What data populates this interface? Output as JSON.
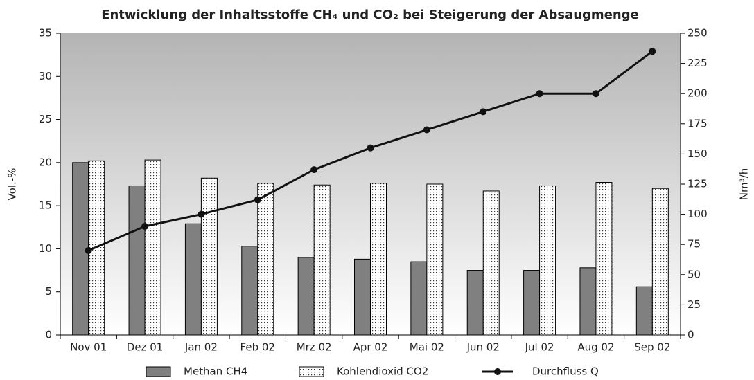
{
  "chart_data": {
    "type": "bar",
    "title": "Entwicklung der Inhaltsstoffe CH₄ und CO₂ bei Steigerung der Absaugmenge",
    "y_label": "Vol.-%",
    "y2_label": "Nm³/h",
    "categories": [
      "Nov 01",
      "Dez 01",
      "Jan 02",
      "Feb 02",
      "Mrz 02",
      "Apr 02",
      "Mai 02",
      "Jun 02",
      "Jul 02",
      "Aug 02",
      "Sep 02"
    ],
    "series": [
      {
        "name": "Methan CH4",
        "type": "bar",
        "color": "#808080",
        "values": [
          20,
          17.3,
          12.9,
          10.3,
          9.0,
          8.8,
          8.5,
          7.5,
          7.5,
          7.8,
          5.6
        ]
      },
      {
        "name": "Kohlendioxid CO2",
        "type": "bar",
        "color": "#ffffff",
        "pattern": "dots",
        "values": [
          20.2,
          20.3,
          18.2,
          17.6,
          17.4,
          17.6,
          17.5,
          16.7,
          17.3,
          17.7,
          17.0
        ]
      },
      {
        "name": "Durchfluss Q",
        "type": "line",
        "axis": "y2",
        "color": "#111111",
        "values": [
          70,
          90,
          100,
          112,
          137,
          155,
          170,
          185,
          200,
          200,
          235
        ]
      }
    ],
    "ylim": [
      0,
      35
    ],
    "yticks": [
      0,
      5,
      10,
      15,
      20,
      25,
      30,
      35
    ],
    "y2lim": [
      0,
      250
    ],
    "y2ticks": [
      0,
      25,
      50,
      75,
      100,
      125,
      150,
      175,
      200,
      225,
      250
    ],
    "legend": "bottom"
  }
}
